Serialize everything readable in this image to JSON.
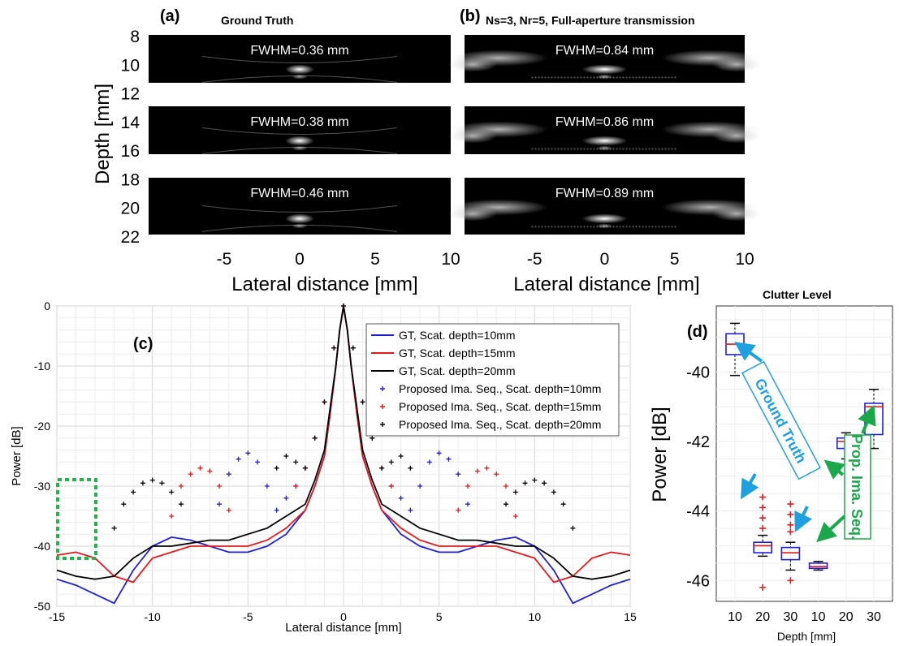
{
  "chart_data": [
    {
      "id": "a",
      "type": "heatmap",
      "panel_label": "(a)",
      "title": "Ground Truth",
      "xlabel": "Lateral distance [mm]",
      "ylabel": "Depth [mm]",
      "xlim": [
        -10,
        10
      ],
      "ylim": [
        22,
        8
      ],
      "xticks": [
        -5,
        0,
        5,
        10
      ],
      "yticks": [
        8,
        10,
        12,
        14,
        16,
        18,
        20,
        22
      ],
      "images": [
        {
          "depth_mm": 10,
          "label": "FWHM=0.36 mm"
        },
        {
          "depth_mm": 15,
          "label": "FWHM=0.38 mm"
        },
        {
          "depth_mm": 20,
          "label": "FWHM=0.46 mm"
        }
      ]
    },
    {
      "id": "b",
      "type": "heatmap",
      "panel_label": "(b)",
      "title": "Ns=3, Nr=5, Full-aperture  transmission",
      "xlabel": "Lateral distance [mm]",
      "xlim": [
        -10,
        10
      ],
      "xticks": [
        -5,
        0,
        5,
        10
      ],
      "images": [
        {
          "depth_mm": 10,
          "label": "FWHM=0.84 mm"
        },
        {
          "depth_mm": 15,
          "label": "FWHM=0.86 mm"
        },
        {
          "depth_mm": 20,
          "label": "FWHM=0.89 mm"
        }
      ]
    },
    {
      "id": "c",
      "type": "line",
      "panel_label": "(c)",
      "xlabel": "Lateral distance [mm]",
      "ylabel": "Power [dB]",
      "xlim": [
        -15,
        15
      ],
      "ylim": [
        -50,
        0
      ],
      "xticks": [
        -15,
        -10,
        -5,
        0,
        5,
        10,
        15
      ],
      "yticks": [
        0,
        -10,
        -20,
        -30,
        -40,
        -50
      ],
      "grid": true,
      "legend_position": "top-right",
      "series": [
        {
          "name": "GT, Scat. depth=10mm",
          "style": "line",
          "color": "#1f1fd6",
          "x": [
            -15,
            -14,
            -13,
            -12,
            -11,
            -10,
            -9,
            -8,
            -7,
            -6,
            -5,
            -4,
            -3,
            -2,
            -1.5,
            -1,
            -0.7,
            -0.4,
            -0.2,
            0,
            0.2,
            0.4,
            0.7,
            1,
            1.5,
            2,
            3,
            4,
            5,
            6,
            7,
            8,
            9,
            10,
            11,
            12,
            13,
            14,
            15
          ],
          "y": [
            -45.5,
            -46.5,
            -48,
            -49.5,
            -44,
            -40,
            -38.5,
            -39,
            -40,
            -41,
            -41,
            -40,
            -38,
            -34,
            -30,
            -25,
            -18,
            -10,
            -4,
            0,
            -4,
            -10,
            -18,
            -25,
            -30,
            -34,
            -38,
            -40,
            -41,
            -41,
            -40,
            -39,
            -38.5,
            -40,
            -44,
            -49.5,
            -48,
            -46.5,
            -45.5
          ]
        },
        {
          "name": "GT, Scat. depth=15mm",
          "style": "line",
          "color": "#e31a1c",
          "x": [
            -15,
            -14,
            -13,
            -12,
            -11,
            -10,
            -9,
            -8,
            -7,
            -6,
            -5,
            -4,
            -3,
            -2,
            -1.5,
            -1,
            -0.7,
            -0.4,
            -0.2,
            0,
            0.2,
            0.4,
            0.7,
            1,
            1.5,
            2,
            3,
            4,
            5,
            6,
            7,
            8,
            9,
            10,
            11,
            12,
            13,
            14,
            15
          ],
          "y": [
            -41.5,
            -41,
            -42,
            -45,
            -46,
            -42,
            -41,
            -40,
            -40,
            -40,
            -40,
            -39,
            -37,
            -34,
            -30,
            -25,
            -18,
            -10,
            -4,
            0,
            -4,
            -10,
            -18,
            -25,
            -30,
            -34,
            -37,
            -39,
            -40,
            -40,
            -40,
            -40,
            -41,
            -42,
            -46,
            -45,
            -42,
            -41,
            -41.5
          ]
        },
        {
          "name": "GT, Scat. depth=20mm",
          "style": "line",
          "color": "#000000",
          "x": [
            -15,
            -14,
            -13,
            -12,
            -11,
            -10,
            -9,
            -8,
            -7,
            -6,
            -5,
            -4,
            -3,
            -2,
            -1.5,
            -1,
            -0.7,
            -0.4,
            -0.2,
            0,
            0.2,
            0.4,
            0.7,
            1,
            1.5,
            2,
            3,
            4,
            5,
            6,
            7,
            8,
            9,
            10,
            11,
            12,
            13,
            14,
            15
          ],
          "y": [
            -44,
            -45,
            -45.5,
            -45,
            -42,
            -40,
            -40,
            -39.5,
            -39,
            -39,
            -38,
            -37,
            -35,
            -33,
            -29,
            -24,
            -17,
            -10,
            -4,
            0,
            -4,
            -10,
            -17,
            -24,
            -29,
            -33,
            -35,
            -37,
            -38,
            -39,
            -39,
            -39.5,
            -40,
            -40,
            -42,
            -45,
            -45.5,
            -45,
            -44
          ]
        },
        {
          "name": "Proposed Ima. Seq., Scat. depth=10mm",
          "style": "markers",
          "color": "#1f1fd6",
          "x": [
            -6.5,
            -6,
            -5.5,
            -5,
            -4.5,
            -4,
            -3.5,
            -3,
            -2.5,
            -2,
            -1.5,
            -1,
            -0.5,
            0,
            0.5,
            1,
            1.5,
            2,
            2.5,
            3,
            3.5,
            4,
            4.5,
            5,
            5.5,
            6,
            6.5
          ],
          "y": [
            -33,
            -28,
            -25.5,
            -24.5,
            -26,
            -30,
            -34,
            -32,
            -30,
            -27,
            -22,
            -16,
            -7,
            0,
            -7,
            -16,
            -22,
            -27,
            -30,
            -32,
            -34,
            -30,
            -26,
            -24.5,
            -25.5,
            -28,
            -33
          ]
        },
        {
          "name": "Proposed Ima. Seq., Scat. depth=15mm",
          "style": "markers",
          "color": "#e31a1c",
          "x": [
            -9,
            -8.5,
            -8,
            -7.5,
            -7,
            -6.5,
            -6,
            -2.5,
            -2,
            -1.5,
            -1,
            -0.5,
            0,
            0.5,
            1,
            1.5,
            2,
            2.5,
            6,
            6.5,
            7,
            7.5,
            8,
            8.5,
            9
          ],
          "y": [
            -35,
            -30,
            -28,
            -27,
            -27.5,
            -30,
            -34,
            -30,
            -27,
            -22,
            -16,
            -7,
            0,
            -7,
            -16,
            -22,
            -27,
            -30,
            -34,
            -30,
            -27.5,
            -27,
            -28,
            -30,
            -35
          ]
        },
        {
          "name": "Proposed Ima. Seq., Scat. depth=20mm",
          "style": "markers",
          "color": "#000000",
          "x": [
            -12,
            -11.5,
            -11,
            -10.5,
            -10,
            -9.5,
            -9,
            -8.5,
            -3.5,
            -3,
            -2.5,
            -2,
            -1.5,
            -1,
            -0.5,
            0,
            0.5,
            1,
            1.5,
            2,
            2.5,
            3,
            3.5,
            8.5,
            9,
            9.5,
            10,
            10.5,
            11,
            11.5,
            12
          ],
          "y": [
            -37,
            -33,
            -31,
            -29.5,
            -29,
            -29.5,
            -31,
            -33,
            -27,
            -25,
            -26,
            -27,
            -22,
            -16,
            -7,
            0,
            -7,
            -16,
            -22,
            -27,
            -26,
            -25,
            -27,
            -33,
            -31,
            -29.5,
            -29,
            -29.5,
            -31,
            -33,
            -37
          ]
        }
      ]
    },
    {
      "id": "d",
      "type": "box",
      "panel_label": "(d)",
      "title": "Clutter Level",
      "xlabel": "Depth [mm]",
      "ylabel": "Power [dB]",
      "ylim": [
        -46.6,
        -38.1
      ],
      "yticks": [
        -40,
        -42,
        -44,
        -46
      ],
      "categories": [
        "10",
        "20",
        "30",
        "10",
        "20",
        "30"
      ],
      "groups": [
        "Ground Truth",
        "Ground Truth",
        "Ground Truth",
        "Prop. Ima. Seq.",
        "Prop. Ima. Seq.",
        "Prop. Ima. Seq."
      ],
      "boxes": [
        {
          "whisker_low": -40.1,
          "q1": -39.5,
          "median": -39.2,
          "q3": -38.9,
          "whisker_high": -38.6,
          "outliers": []
        },
        {
          "whisker_low": -45.3,
          "q1": -45.2,
          "median": -45.0,
          "q3": -44.9,
          "whisker_high": -44.7,
          "outliers": [
            -43.6,
            -43.9,
            -44.2,
            -44.5,
            -46.2
          ]
        },
        {
          "whisker_low": -45.7,
          "q1": -45.4,
          "median": -45.2,
          "q3": -45.05,
          "whisker_high": -44.9,
          "outliers": [
            -43.8,
            -44.1,
            -44.4,
            -44.6,
            -46.0
          ]
        },
        {
          "whisker_low": -45.7,
          "q1": -45.65,
          "median": -45.6,
          "q3": -45.5,
          "whisker_high": -45.45,
          "outliers": []
        },
        {
          "whisker_low": -42.5,
          "q1": -42.2,
          "median": -42.0,
          "q3": -41.9,
          "whisker_high": -41.75,
          "outliers": []
        },
        {
          "whisker_low": -42.2,
          "q1": -41.8,
          "median": -41.0,
          "q3": -40.9,
          "whisker_high": -40.5,
          "outliers": []
        }
      ],
      "annotations": [
        "Ground Truth",
        "Prop. Ima. Seq."
      ]
    }
  ],
  "colors": {
    "gt_arrow": "#1fa0e0",
    "prop_arrow": "#1aa84a",
    "box_edge": "#1f1fd6",
    "median": "#e31a1c",
    "outlier": "#e31a1c"
  }
}
